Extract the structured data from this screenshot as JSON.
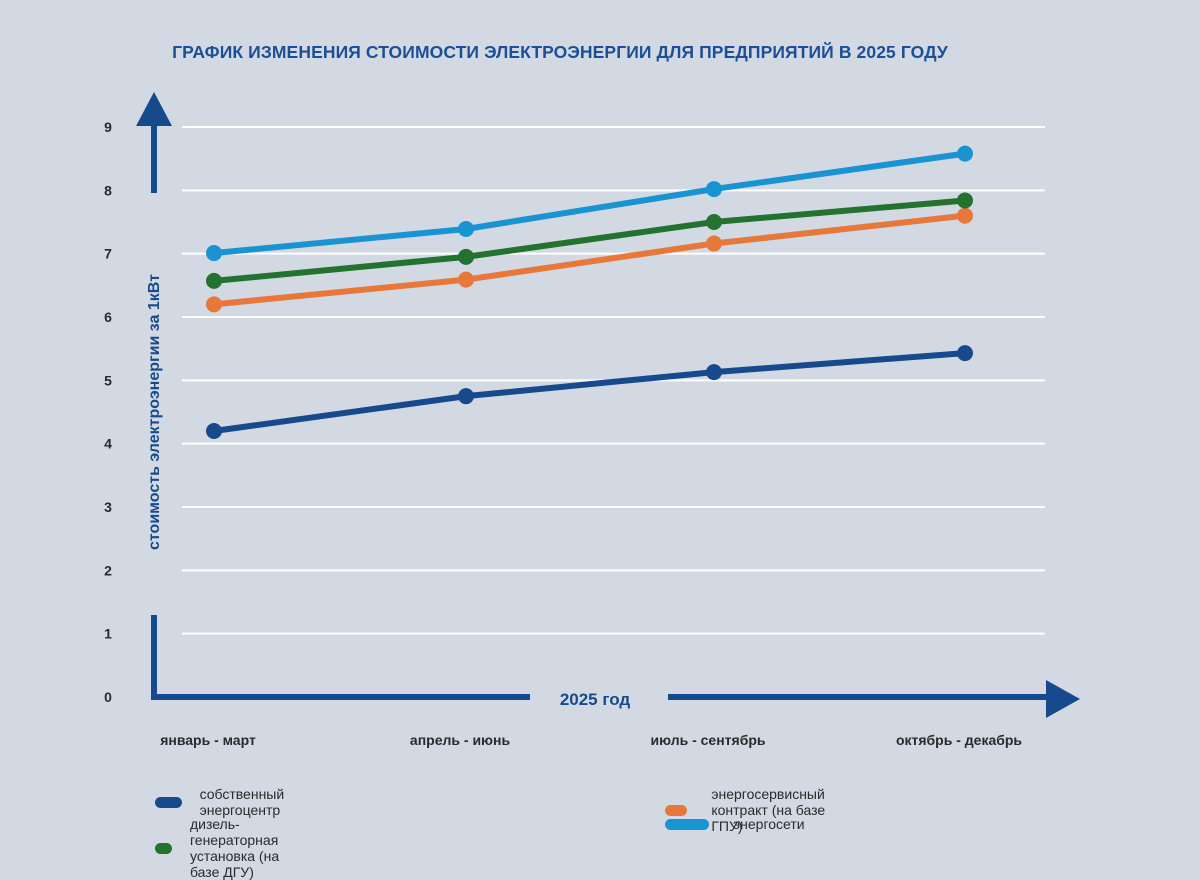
{
  "chart_data": {
    "type": "line",
    "title": "ГРАФИК ИЗМЕНЕНИЯ СТОИМОСТИ ЭЛЕКТРОЭНЕРГИИ ДЛЯ ПРЕДПРИЯТИЙ В 2025 ГОДУ",
    "xlabel": "2025 год",
    "ylabel": "стоимость электроэнергии за 1кВт",
    "categories": [
      "январь - март",
      "апрель - июнь",
      "июль - сентябрь",
      "октябрь - декабрь"
    ],
    "ylim": [
      0,
      9
    ],
    "yticks": [
      "0",
      "1",
      "2",
      "3",
      "4",
      "5",
      "6",
      "7",
      "8",
      "9"
    ],
    "grid": true,
    "legend_position": "bottom",
    "series": [
      {
        "name": "собственный энергоцентр",
        "color": "#174a8c",
        "values": [
          4.2,
          4.75,
          5.13,
          5.43
        ]
      },
      {
        "name": "энергосервисный контракт (на базе ГПУ)",
        "color": "#e8773a",
        "values": [
          6.2,
          6.59,
          7.16,
          7.6
        ]
      },
      {
        "name": "дизель-генераторная установка (на базе ДГУ)",
        "color": "#23722f",
        "values": [
          6.57,
          6.95,
          7.5,
          7.84
        ]
      },
      {
        "name": "энергосети",
        "color": "#1a93d2",
        "values": [
          7.01,
          7.39,
          8.02,
          8.58
        ]
      }
    ],
    "axis_color": "#174a8c"
  }
}
